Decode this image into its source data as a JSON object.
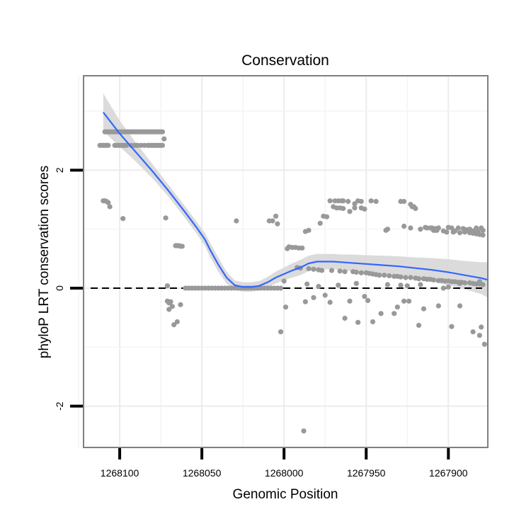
{
  "chart_data": {
    "type": "scatter",
    "title": "Conservation",
    "xlabel": "Genomic Position",
    "ylabel": "phyloP LRT conservation scores",
    "x_reversed": true,
    "xlim": [
      1268122,
      1267876
    ],
    "ylim": [
      -2.7,
      3.6
    ],
    "x_ticks": [
      1268100,
      1268050,
      1268000,
      1267950,
      1267900
    ],
    "x_tick_labels": [
      "1268100",
      "1268050",
      "1268000",
      "1267950",
      "1267900"
    ],
    "y_ticks": [
      -2,
      0,
      2
    ],
    "y_tick_labels": [
      "-2",
      "0",
      "2"
    ],
    "grid": true,
    "reference_line": {
      "y": 0,
      "style": "dashed"
    },
    "points_color": "#999999",
    "smooth_color": "#3366ff",
    "band_color": "#d9d9d9",
    "series": [
      {
        "name": "observed scores",
        "x": [
          1268110,
          1268109,
          1268108,
          1268107,
          1268106,
          1268109,
          1268108,
          1268107,
          1268106,
          1268105,
          1268104,
          1268103,
          1268102,
          1268101,
          1268100,
          1268099,
          1268098,
          1268097,
          1268096,
          1268095,
          1268094,
          1268093,
          1268092,
          1268091,
          1268090,
          1268089,
          1268088,
          1268087,
          1268086,
          1268085,
          1268084,
          1268083,
          1268082,
          1268081,
          1268080,
          1268079,
          1268078,
          1268077,
          1268076,
          1268075,
          1268074,
          1268103,
          1268102,
          1268101,
          1268100,
          1268099,
          1268098,
          1268097,
          1268096,
          1268093,
          1268091,
          1268090,
          1268089,
          1268087,
          1268085,
          1268083,
          1268082,
          1268081,
          1268080,
          1268079,
          1268078,
          1268077,
          1268076,
          1268075,
          1268074,
          1268073,
          1268112,
          1268111,
          1268110,
          1268109,
          1268108,
          1268107,
          1268098,
          1268072,
          1268066,
          1268065,
          1268064,
          1268063,
          1268062,
          1268071,
          1268070,
          1268067,
          1268065,
          1268063,
          1268071,
          1268070,
          1268069,
          1268068,
          1268060,
          1268058,
          1268056,
          1268054,
          1268052,
          1268050,
          1268048,
          1268046,
          1268044,
          1268042,
          1268040,
          1268038,
          1268036,
          1268034,
          1268032,
          1268030,
          1268028,
          1268026,
          1268024,
          1268022,
          1268020,
          1268018,
          1268016,
          1268014,
          1268012,
          1268010,
          1268008,
          1268006,
          1268004,
          1268002,
          1268029,
          1268009,
          1268007,
          1268005,
          1268004,
          1267998,
          1267997,
          1267995,
          1267993,
          1267991,
          1267989,
          1267987,
          1267985,
          1267978,
          1267976,
          1267974,
          1267972,
          1267969,
          1267967,
          1267965,
          1267964,
          1267961,
          1267957,
          1267955,
          1267953,
          1267947,
          1267944,
          1267938,
          1267937,
          1267927,
          1267923,
          1267917,
          1267914,
          1267913,
          1267911,
          1267910,
          1267908,
          1267906,
          1267903,
          1267900,
          1267898,
          1267896,
          1267894,
          1267891,
          1267889,
          1267887,
          1267885,
          1267883,
          1267882,
          1267880,
          1267879,
          1267970,
          1267968,
          1267966,
          1267964,
          1267960,
          1267957,
          1267953,
          1267951,
          1267929,
          1267927,
          1267923,
          1267922,
          1267921,
          1267920,
          1267909,
          1267908,
          1267907,
          1267901,
          1267897,
          1267893,
          1267890,
          1267887,
          1267885,
          1267883,
          1267881,
          1267879,
          1267992,
          1267990,
          1267985,
          1267982,
          1267979,
          1267977,
          1267971,
          1267966,
          1267963,
          1267958,
          1267956,
          1267953,
          1267950,
          1267948,
          1267946,
          1267944,
          1267942,
          1267939,
          1267936,
          1267933,
          1267931,
          1267929,
          1267926,
          1267923,
          1267920,
          1267918,
          1267915,
          1267913,
          1267911,
          1267909,
          1267906,
          1267904,
          1267902,
          1267900,
          1267898,
          1267896,
          1267894,
          1267892,
          1267890,
          1267887,
          1267885,
          1267883,
          1267881,
          1267879,
          1268002,
          1267999,
          1267987,
          1267982,
          1267975,
          1267972,
          1267963,
          1267960,
          1267955,
          1267951,
          1267949,
          1267946,
          1267941,
          1267933,
          1267931,
          1267927,
          1267924,
          1267918,
          1267915,
          1267906,
          1267898,
          1267893,
          1267885,
          1267881,
          1267880,
          1267878,
          1268000,
          1267986,
          1267979,
          1267967,
          1267956,
          1267937,
          1267929,
          1267925,
          1267917,
          1267903,
          1267900,
          1267893,
          1267881,
          1267988
        ],
        "y": [
          1.48,
          1.48,
          1.47,
          1.45,
          1.38,
          2.65,
          2.65,
          2.65,
          2.65,
          2.65,
          2.65,
          2.65,
          2.65,
          2.65,
          2.65,
          2.65,
          2.65,
          2.65,
          2.65,
          2.65,
          2.65,
          2.65,
          2.65,
          2.65,
          2.65,
          2.65,
          2.65,
          2.65,
          2.65,
          2.65,
          2.65,
          2.65,
          2.65,
          2.65,
          2.65,
          2.65,
          2.65,
          2.65,
          2.65,
          2.65,
          2.65,
          2.42,
          2.42,
          2.42,
          2.42,
          2.42,
          2.42,
          2.42,
          2.42,
          2.42,
          2.42,
          2.42,
          2.42,
          2.42,
          2.42,
          2.42,
          2.42,
          2.42,
          2.42,
          2.42,
          2.42,
          2.42,
          2.42,
          2.42,
          2.42,
          2.53,
          2.42,
          2.42,
          2.42,
          2.42,
          2.42,
          2.42,
          1.18,
          1.19,
          0.72,
          0.72,
          0.72,
          0.71,
          0.71,
          0.04,
          -0.36,
          -0.62,
          -0.57,
          -0.28,
          -0.22,
          -0.25,
          -0.23,
          -0.31,
          0.0,
          0.0,
          0.0,
          0.0,
          0.0,
          0.0,
          0.0,
          0.0,
          0.0,
          0.0,
          0.0,
          0.0,
          0.0,
          0.0,
          0.0,
          0.0,
          0.0,
          0.0,
          0.0,
          0.0,
          0.0,
          0.0,
          0.0,
          0.0,
          0.0,
          0.0,
          0.0,
          0.0,
          0.0,
          0.0,
          1.14,
          1.14,
          1.14,
          1.22,
          1.09,
          0.67,
          0.7,
          0.69,
          0.69,
          0.68,
          0.68,
          0.96,
          0.98,
          1.1,
          1.22,
          1.21,
          1.48,
          1.48,
          1.48,
          1.48,
          1.48,
          1.47,
          1.43,
          1.48,
          1.47,
          1.48,
          1.47,
          0.98,
          1.0,
          1.05,
          1.02,
          1.0,
          1.03,
          1.02,
          1.02,
          1.02,
          1.01,
          1.02,
          0.97,
          1.03,
          1.02,
          0.97,
          1.02,
          1.01,
          0.99,
          1.0,
          0.97,
          1.02,
          0.96,
          1.02,
          0.98,
          1.38,
          1.36,
          1.36,
          1.35,
          1.3,
          1.36,
          1.36,
          1.34,
          1.47,
          1.47,
          1.42,
          1.38,
          1.38,
          1.35,
          0.98,
          0.98,
          0.98,
          0.95,
          0.95,
          0.94,
          0.95,
          0.94,
          0.93,
          0.92,
          0.91,
          0.9,
          0.35,
          0.34,
          0.33,
          0.32,
          0.31,
          0.3,
          0.3,
          0.29,
          0.28,
          0.28,
          0.27,
          0.26,
          0.26,
          0.25,
          0.24,
          0.23,
          0.22,
          0.22,
          0.21,
          0.2,
          0.2,
          0.19,
          0.18,
          0.18,
          0.17,
          0.16,
          0.16,
          0.15,
          0.15,
          0.14,
          0.13,
          0.13,
          0.12,
          0.12,
          0.11,
          0.11,
          0.1,
          0.1,
          0.09,
          0.09,
          0.08,
          0.07,
          0.07,
          0.06,
          -0.74,
          -0.32,
          -0.23,
          -0.16,
          -0.12,
          -0.24,
          -0.51,
          -0.22,
          -0.58,
          -0.14,
          -0.21,
          -0.57,
          -0.43,
          -0.43,
          -0.32,
          -0.22,
          -0.22,
          -0.63,
          -0.35,
          -0.3,
          -0.65,
          -0.3,
          -0.74,
          -0.8,
          -0.66,
          -0.95,
          0.12,
          0.07,
          0.03,
          0.05,
          0.08,
          0.06,
          0.05,
          0.04,
          0.06,
          0.0,
          0.02,
          0.08,
          0.11,
          -2.42
        ],
        "manual_layers": {
          "cluster_1_top_row": [
            1268109,
            1268074,
            2.65
          ],
          "cluster_2_second_row": [
            1268109,
            1268074,
            2.42
          ]
        }
      }
    ],
    "smooth_curve": {
      "x": [
        1268110,
        1268100,
        1268090,
        1268080,
        1268070,
        1268060,
        1268053,
        1268048,
        1268045,
        1268040,
        1268035,
        1268030,
        1268025,
        1268020,
        1268015,
        1268010,
        1268005,
        1268000,
        1267995,
        1267990,
        1267985,
        1267980,
        1267975,
        1267970,
        1267965,
        1267960,
        1267950,
        1267940,
        1267930,
        1267920,
        1267910,
        1267900,
        1267890,
        1267880,
        1267876
      ],
      "y": [
        2.98,
        2.62,
        2.3,
        1.98,
        1.64,
        1.28,
        1.02,
        0.82,
        0.65,
        0.4,
        0.18,
        0.05,
        0.02,
        0.02,
        0.04,
        0.1,
        0.18,
        0.24,
        0.3,
        0.35,
        0.42,
        0.45,
        0.45,
        0.45,
        0.44,
        0.43,
        0.41,
        0.39,
        0.37,
        0.34,
        0.31,
        0.27,
        0.22,
        0.17,
        0.14
      ],
      "band_half_width": [
        0.32,
        0.22,
        0.16,
        0.12,
        0.1,
        0.1,
        0.1,
        0.11,
        0.12,
        0.12,
        0.1,
        0.08,
        0.08,
        0.08,
        0.08,
        0.09,
        0.1,
        0.11,
        0.12,
        0.13,
        0.13,
        0.13,
        0.13,
        0.13,
        0.13,
        0.14,
        0.15,
        0.16,
        0.17,
        0.18,
        0.2,
        0.22,
        0.24,
        0.27,
        0.3
      ]
    }
  }
}
